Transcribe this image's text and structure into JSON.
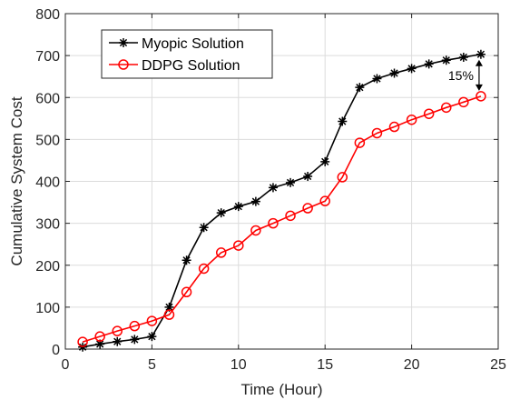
{
  "chart_data": {
    "type": "line",
    "xlabel": "Time (Hour)",
    "ylabel": "Cumulative System Cost",
    "xlim": [
      0,
      25
    ],
    "ylim": [
      0,
      800
    ],
    "xticks": [
      0,
      5,
      10,
      15,
      20,
      25
    ],
    "yticks": [
      0,
      100,
      200,
      300,
      400,
      500,
      600,
      700,
      800
    ],
    "grid": true,
    "legend_position": "top-left",
    "x": [
      1,
      2,
      3,
      4,
      5,
      6,
      7,
      8,
      9,
      10,
      11,
      12,
      13,
      14,
      15,
      16,
      17,
      18,
      19,
      20,
      21,
      22,
      23,
      24
    ],
    "series": [
      {
        "name": "Myopic Solution",
        "color": "#000000",
        "marker": "asterisk",
        "values": [
          5,
          12,
          18,
          23,
          30,
          100,
          212,
          290,
          325,
          340,
          352,
          385,
          397,
          412,
          447,
          543,
          624,
          645,
          658,
          669,
          680,
          689,
          696,
          703
        ]
      },
      {
        "name": "DDPG Solution",
        "color": "#ff0000",
        "marker": "circle",
        "values": [
          17,
          30,
          43,
          55,
          67,
          82,
          136,
          192,
          230,
          247,
          283,
          300,
          318,
          336,
          353,
          410,
          492,
          515,
          530,
          547,
          561,
          576,
          589,
          603
        ]
      }
    ],
    "annotation": {
      "text": "15%",
      "x": 24,
      "y_from": 603,
      "y_to": 703
    }
  }
}
